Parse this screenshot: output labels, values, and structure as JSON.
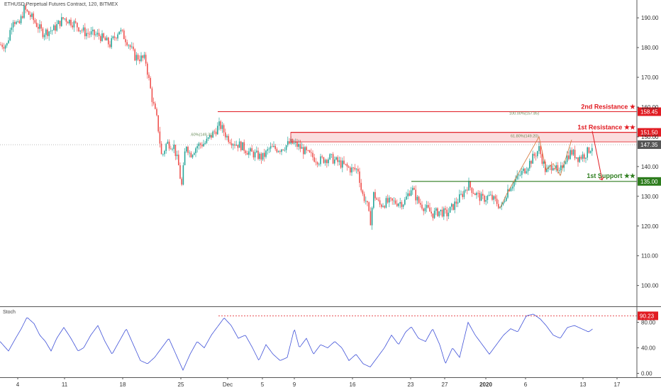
{
  "chart_data": {
    "type": "candlestick",
    "title": "ETHUSD Perpetual Futures Contract, 120, BITMEX",
    "price_axis": {
      "ylim": [
        93,
        196
      ],
      "ticks": [
        100,
        110,
        120,
        130,
        140,
        150,
        160,
        170,
        180,
        190
      ],
      "tick_labels": [
        "100.00",
        "110.00",
        "120.00",
        "130.00",
        "140.00",
        "150.00",
        "160.00",
        "170.00",
        "180.00",
        "190.00"
      ]
    },
    "x_axis": {
      "tick_labels": [
        "4",
        "11",
        "18",
        "25",
        "Dec",
        "5",
        "9",
        "16",
        "23",
        "27",
        "2020",
        "6",
        "13",
        "17"
      ],
      "tick_x": [
        25,
        91,
        173,
        255,
        321,
        370,
        415,
        497,
        579,
        627,
        685,
        741,
        822,
        870
      ]
    },
    "price_keypoints": [
      [
        0,
        181
      ],
      [
        10,
        181
      ],
      [
        18,
        190
      ],
      [
        26,
        187
      ],
      [
        34,
        193
      ],
      [
        45,
        190
      ],
      [
        60,
        185
      ],
      [
        75,
        186
      ],
      [
        90,
        190
      ],
      [
        105,
        188
      ],
      [
        120,
        185
      ],
      [
        140,
        184
      ],
      [
        155,
        181
      ],
      [
        168,
        186
      ],
      [
        180,
        182
      ],
      [
        190,
        177
      ],
      [
        205,
        176
      ],
      [
        215,
        162
      ],
      [
        222,
        155
      ],
      [
        228,
        143
      ],
      [
        235,
        148
      ],
      [
        245,
        147
      ],
      [
        252,
        140
      ],
      [
        256,
        133
      ],
      [
        262,
        148
      ],
      [
        268,
        144
      ],
      [
        278,
        147
      ],
      [
        290,
        148
      ],
      [
        300,
        151
      ],
      [
        310,
        154
      ],
      [
        320,
        150
      ],
      [
        330,
        148
      ],
      [
        340,
        147
      ],
      [
        350,
        145
      ],
      [
        360,
        144
      ],
      [
        370,
        143
      ],
      [
        380,
        146
      ],
      [
        395,
        146
      ],
      [
        410,
        148
      ],
      [
        420,
        147
      ],
      [
        435,
        144
      ],
      [
        450,
        142
      ],
      [
        465,
        143
      ],
      [
        480,
        141
      ],
      [
        495,
        139
      ],
      [
        505,
        139
      ],
      [
        510,
        131
      ],
      [
        517,
        128
      ],
      [
        522,
        121
      ],
      [
        527,
        131
      ],
      [
        535,
        127
      ],
      [
        545,
        128
      ],
      [
        555,
        128
      ],
      [
        570,
        128
      ],
      [
        580,
        133
      ],
      [
        590,
        128
      ],
      [
        600,
        126
      ],
      [
        610,
        124
      ],
      [
        620,
        125
      ],
      [
        630,
        124
      ],
      [
        640,
        127
      ],
      [
        650,
        130
      ],
      [
        660,
        134
      ],
      [
        670,
        131
      ],
      [
        680,
        129
      ],
      [
        690,
        130
      ],
      [
        700,
        128
      ],
      [
        707,
        126
      ],
      [
        715,
        132
      ],
      [
        725,
        135
      ],
      [
        740,
        139
      ],
      [
        760,
        146
      ],
      [
        770,
        138
      ],
      [
        780,
        141
      ],
      [
        788,
        137
      ],
      [
        795,
        142
      ],
      [
        805,
        145
      ],
      [
        815,
        143
      ],
      [
        825,
        144
      ],
      [
        835,
        147
      ]
    ],
    "current_price": 147.35,
    "levels": [
      {
        "name": "2nd Resistance ★",
        "value": 158.45,
        "label": "158.45",
        "color": "#e11b22",
        "x_start": 307
      },
      {
        "name": "1st Resistance ★★",
        "value": 151.5,
        "label": "151.50",
        "color": "#e11b22",
        "x_start": 410,
        "zone_to": 148.3
      },
      {
        "name": "1st Support ★★",
        "value": 135.0,
        "label": "135.00",
        "color": "#2e7d1e",
        "x_start": 580
      }
    ],
    "fib_annotations": [
      {
        "text": "100.00%(157.85)",
        "value": 157.5,
        "x": 718
      },
      {
        "text": "61.80%(149.20)",
        "value": 149.9,
        "x": 720
      },
      {
        "text": ".60%(149.30)",
        "value": 150.4,
        "x": 268
      }
    ],
    "current_price_label": "147.35",
    "stoch": {
      "title": "Stoch",
      "ylim": [
        -5,
        104
      ],
      "ticks": [
        0,
        40,
        80
      ],
      "tick_labels": [
        "0.00",
        "40.00",
        "80.00"
      ],
      "keypoints": [
        [
          0,
          50
        ],
        [
          12,
          35
        ],
        [
          22,
          55
        ],
        [
          30,
          70
        ],
        [
          38,
          88
        ],
        [
          48,
          78
        ],
        [
          56,
          60
        ],
        [
          64,
          50
        ],
        [
          72,
          35
        ],
        [
          80,
          55
        ],
        [
          90,
          72
        ],
        [
          100,
          55
        ],
        [
          110,
          35
        ],
        [
          118,
          40
        ],
        [
          128,
          60
        ],
        [
          138,
          75
        ],
        [
          148,
          50
        ],
        [
          158,
          30
        ],
        [
          168,
          50
        ],
        [
          178,
          70
        ],
        [
          188,
          45
        ],
        [
          198,
          20
        ],
        [
          208,
          15
        ],
        [
          218,
          25
        ],
        [
          228,
          40
        ],
        [
          238,
          55
        ],
        [
          248,
          30
        ],
        [
          258,
          5
        ],
        [
          268,
          30
        ],
        [
          278,
          50
        ],
        [
          288,
          40
        ],
        [
          298,
          60
        ],
        [
          308,
          75
        ],
        [
          316,
          87
        ],
        [
          326,
          75
        ],
        [
          336,
          55
        ],
        [
          346,
          60
        ],
        [
          356,
          40
        ],
        [
          365,
          20
        ],
        [
          375,
          45
        ],
        [
          385,
          30
        ],
        [
          395,
          20
        ],
        [
          405,
          25
        ],
        [
          415,
          70
        ],
        [
          422,
          40
        ],
        [
          432,
          55
        ],
        [
          442,
          30
        ],
        [
          452,
          45
        ],
        [
          462,
          40
        ],
        [
          472,
          50
        ],
        [
          482,
          40
        ],
        [
          492,
          20
        ],
        [
          502,
          30
        ],
        [
          512,
          15
        ],
        [
          522,
          10
        ],
        [
          532,
          25
        ],
        [
          542,
          40
        ],
        [
          552,
          60
        ],
        [
          562,
          45
        ],
        [
          572,
          65
        ],
        [
          580,
          73
        ],
        [
          590,
          55
        ],
        [
          600,
          50
        ],
        [
          610,
          70
        ],
        [
          620,
          45
        ],
        [
          628,
          15
        ],
        [
          638,
          40
        ],
        [
          648,
          25
        ],
        [
          660,
          80
        ],
        [
          670,
          60
        ],
        [
          680,
          45
        ],
        [
          690,
          30
        ],
        [
          700,
          45
        ],
        [
          710,
          60
        ],
        [
          720,
          70
        ],
        [
          730,
          65
        ],
        [
          742,
          90
        ],
        [
          752,
          93
        ],
        [
          762,
          85
        ],
        [
          770,
          75
        ],
        [
          780,
          60
        ],
        [
          790,
          55
        ],
        [
          800,
          72
        ],
        [
          810,
          75
        ],
        [
          820,
          70
        ],
        [
          830,
          65
        ],
        [
          836,
          70
        ]
      ],
      "overbought_level": 90.23,
      "overbought_label": "90.23",
      "overbought_x_start": 308
    },
    "colors": {
      "up": "#26a69a",
      "down": "#ef5350",
      "support": "#2e7d1e",
      "resistance": "#e11b22",
      "stoch_line": "#3f51d8",
      "trend": "#d9824a",
      "price_tag": "#555555"
    }
  }
}
